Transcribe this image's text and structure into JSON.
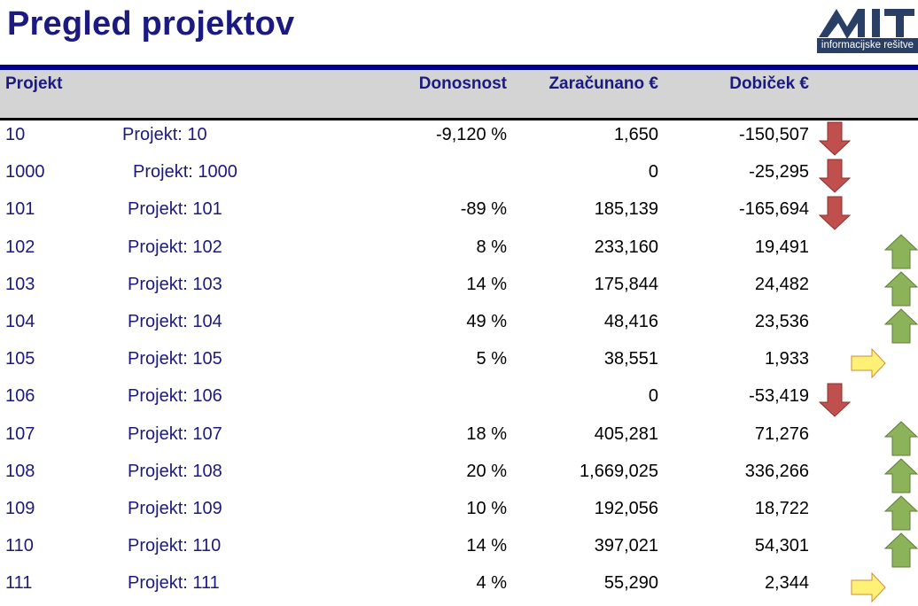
{
  "page": {
    "title": "Pregled projektov"
  },
  "logo": {
    "letters": "MIT",
    "subtitle": "informacijske rešitve"
  },
  "colors": {
    "title": "#1a1a80",
    "rule": "#00008b",
    "header_bg": "#d4d4d4",
    "down_arrow": "#c0504d",
    "up_arrow": "#8db35a",
    "flat_arrow": "#fff176"
  },
  "table": {
    "headers": {
      "project": "Projekt",
      "profitability": "Donosnost",
      "invoiced": "Zaračunano €",
      "profit": "Dobiček €"
    },
    "rows": [
      {
        "id": "10",
        "name": "Projekt: 10",
        "profitability": "-9,120 %",
        "invoiced": "1,650",
        "profit": "-150,507",
        "trend": "down"
      },
      {
        "id": "1000",
        "name": "Projekt: 1000",
        "profitability": "",
        "invoiced": "0",
        "profit": "-25,295",
        "trend": "down"
      },
      {
        "id": "101",
        "name": "Projekt: 101",
        "profitability": "-89 %",
        "invoiced": "185,139",
        "profit": "-165,694",
        "trend": "down"
      },
      {
        "id": "102",
        "name": "Projekt: 102",
        "profitability": "8 %",
        "invoiced": "233,160",
        "profit": "19,491",
        "trend": "up"
      },
      {
        "id": "103",
        "name": "Projekt: 103",
        "profitability": "14 %",
        "invoiced": "175,844",
        "profit": "24,482",
        "trend": "up"
      },
      {
        "id": "104",
        "name": "Projekt: 104",
        "profitability": "49 %",
        "invoiced": "48,416",
        "profit": "23,536",
        "trend": "up"
      },
      {
        "id": "105",
        "name": "Projekt: 105",
        "profitability": "5 %",
        "invoiced": "38,551",
        "profit": "1,933",
        "trend": "flat"
      },
      {
        "id": "106",
        "name": "Projekt: 106",
        "profitability": "",
        "invoiced": "0",
        "profit": "-53,419",
        "trend": "down"
      },
      {
        "id": "107",
        "name": "Projekt: 107",
        "profitability": "18 %",
        "invoiced": "405,281",
        "profit": "71,276",
        "trend": "up"
      },
      {
        "id": "108",
        "name": "Projekt: 108",
        "profitability": "20 %",
        "invoiced": "1,669,025",
        "profit": "336,266",
        "trend": "up"
      },
      {
        "id": "109",
        "name": "Projekt: 109",
        "profitability": "10 %",
        "invoiced": "192,056",
        "profit": "18,722",
        "trend": "up"
      },
      {
        "id": "110",
        "name": "Projekt: 110",
        "profitability": "14 %",
        "invoiced": "397,021",
        "profit": "54,301",
        "trend": "up"
      },
      {
        "id": "111",
        "name": "Projekt: 111",
        "profitability": "4 %",
        "invoiced": "55,290",
        "profit": "2,344",
        "trend": "flat"
      }
    ]
  }
}
